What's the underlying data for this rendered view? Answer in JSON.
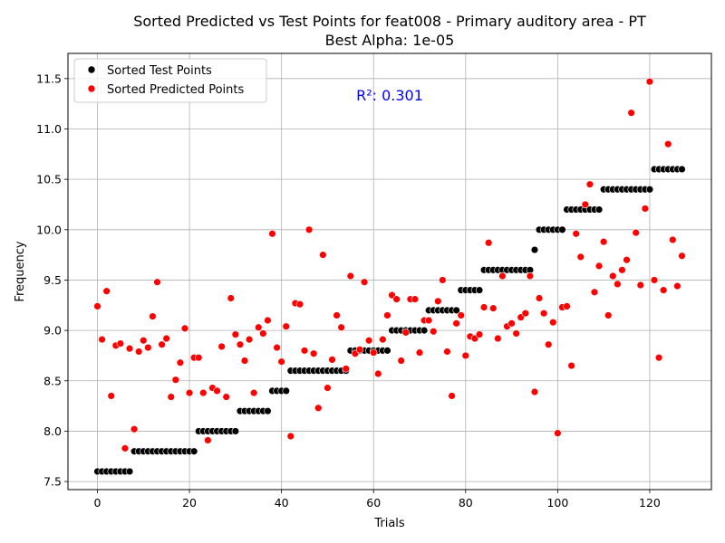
{
  "chart_data": {
    "type": "scatter",
    "title_line1": "Sorted Predicted vs Test Points for feat008 - Primary auditory area - PT",
    "title_line2": "Best Alpha: 1e-05",
    "xlabel": "Trials",
    "ylabel": "Frequency",
    "xlim": [
      -6.4,
      133.4
    ],
    "ylim": [
      7.42,
      11.75
    ],
    "xticks": [
      0,
      20,
      40,
      60,
      80,
      100,
      120
    ],
    "yticks": [
      7.5,
      8.0,
      8.5,
      9.0,
      9.5,
      10.0,
      10.5,
      11.0,
      11.5
    ],
    "xtick_labels": [
      "0",
      "20",
      "40",
      "60",
      "80",
      "100",
      "120"
    ],
    "ytick_labels": [
      "7.5",
      "8.0",
      "8.5",
      "9.0",
      "9.5",
      "10.0",
      "10.5",
      "11.0",
      "11.5"
    ],
    "grid": true,
    "legend_position": "top-left",
    "annotation": {
      "text": "R²: 0.301",
      "color": "#0000ff"
    },
    "series": [
      {
        "name": "Sorted Test Points",
        "color": "#000000",
        "x": [
          0,
          1,
          2,
          3,
          4,
          5,
          6,
          7,
          8,
          9,
          10,
          11,
          12,
          13,
          14,
          15,
          16,
          17,
          18,
          19,
          20,
          21,
          22,
          23,
          24,
          25,
          26,
          27,
          28,
          29,
          30,
          31,
          32,
          33,
          34,
          35,
          36,
          37,
          38,
          39,
          40,
          41,
          42,
          43,
          44,
          45,
          46,
          47,
          48,
          49,
          50,
          51,
          52,
          53,
          54,
          55,
          56,
          57,
          58,
          59,
          60,
          61,
          62,
          63,
          64,
          65,
          66,
          67,
          68,
          69,
          70,
          71,
          72,
          73,
          74,
          75,
          76,
          77,
          78,
          79,
          80,
          81,
          82,
          83,
          84,
          85,
          86,
          87,
          88,
          89,
          90,
          91,
          92,
          93,
          94,
          95,
          96,
          97,
          98,
          99,
          100,
          101,
          102,
          103,
          104,
          105,
          106,
          107,
          108,
          109,
          110,
          111,
          112,
          113,
          114,
          115,
          116,
          117,
          118,
          119,
          120,
          121,
          122,
          123,
          124,
          125,
          126,
          127
        ],
        "y": [
          7.6,
          7.6,
          7.6,
          7.6,
          7.6,
          7.6,
          7.6,
          7.6,
          7.8,
          7.8,
          7.8,
          7.8,
          7.8,
          7.8,
          7.8,
          7.8,
          7.8,
          7.8,
          7.8,
          7.8,
          7.8,
          7.8,
          8.0,
          8.0,
          8.0,
          8.0,
          8.0,
          8.0,
          8.0,
          8.0,
          8.0,
          8.2,
          8.2,
          8.2,
          8.2,
          8.2,
          8.2,
          8.2,
          8.4,
          8.4,
          8.4,
          8.4,
          8.6,
          8.6,
          8.6,
          8.6,
          8.6,
          8.6,
          8.6,
          8.6,
          8.6,
          8.6,
          8.6,
          8.6,
          8.6,
          8.8,
          8.8,
          8.8,
          8.8,
          8.8,
          8.8,
          8.8,
          8.8,
          8.8,
          9.0,
          9.0,
          9.0,
          9.0,
          9.0,
          9.0,
          9.0,
          9.0,
          9.2,
          9.2,
          9.2,
          9.2,
          9.2,
          9.2,
          9.2,
          9.4,
          9.4,
          9.4,
          9.4,
          9.4,
          9.6,
          9.6,
          9.6,
          9.6,
          9.6,
          9.6,
          9.6,
          9.6,
          9.6,
          9.6,
          9.6,
          9.8,
          10.0,
          10.0,
          10.0,
          10.0,
          10.0,
          10.0,
          10.2,
          10.2,
          10.2,
          10.2,
          10.2,
          10.2,
          10.2,
          10.2,
          10.4,
          10.4,
          10.4,
          10.4,
          10.4,
          10.4,
          10.4,
          10.4,
          10.4,
          10.4,
          10.4,
          10.6,
          10.6,
          10.6,
          10.6,
          10.6,
          10.6,
          10.6
        ]
      },
      {
        "name": "Sorted Predicted Points",
        "color": "#ff0000",
        "x": [
          0,
          1,
          2,
          3,
          4,
          5,
          6,
          7,
          8,
          9,
          10,
          11,
          12,
          13,
          14,
          15,
          16,
          17,
          18,
          19,
          20,
          21,
          22,
          23,
          24,
          25,
          26,
          27,
          28,
          29,
          30,
          31,
          32,
          33,
          34,
          35,
          36,
          37,
          38,
          39,
          40,
          41,
          42,
          43,
          44,
          45,
          46,
          47,
          48,
          49,
          50,
          51,
          52,
          53,
          54,
          55,
          56,
          57,
          58,
          59,
          60,
          61,
          62,
          63,
          64,
          65,
          66,
          67,
          68,
          69,
          70,
          71,
          72,
          73,
          74,
          75,
          76,
          77,
          78,
          79,
          80,
          81,
          82,
          83,
          84,
          85,
          86,
          87,
          88,
          89,
          90,
          91,
          92,
          93,
          94,
          95,
          96,
          97,
          98,
          99,
          100,
          101,
          102,
          103,
          104,
          105,
          106,
          107,
          108,
          109,
          110,
          111,
          112,
          113,
          114,
          115,
          116,
          117,
          118,
          119,
          120,
          121,
          122,
          123,
          124,
          125,
          126,
          127
        ],
        "y": [
          9.24,
          8.91,
          9.39,
          8.35,
          8.85,
          8.87,
          7.83,
          8.82,
          8.02,
          8.79,
          8.9,
          8.83,
          9.14,
          9.48,
          8.86,
          8.92,
          8.34,
          8.51,
          8.68,
          9.02,
          8.38,
          8.73,
          8.73,
          8.38,
          7.91,
          8.43,
          8.4,
          8.84,
          8.34,
          9.32,
          8.96,
          8.86,
          8.7,
          8.91,
          8.38,
          9.03,
          8.97,
          9.1,
          9.96,
          8.83,
          8.69,
          9.04,
          7.95,
          9.27,
          9.26,
          8.8,
          10.0,
          8.77,
          8.23,
          9.75,
          8.43,
          8.71,
          9.15,
          9.03,
          8.62,
          9.54,
          8.77,
          8.81,
          9.48,
          8.9,
          8.78,
          8.57,
          8.91,
          9.15,
          9.35,
          9.31,
          8.7,
          8.98,
          9.31,
          9.31,
          8.78,
          9.1,
          9.1,
          8.99,
          9.29,
          9.5,
          8.79,
          8.35,
          9.07,
          9.15,
          8.75,
          8.94,
          8.92,
          8.96,
          9.23,
          9.87,
          9.22,
          8.92,
          9.54,
          9.04,
          9.07,
          8.97,
          9.13,
          9.17,
          9.54,
          8.39,
          9.32,
          9.17,
          8.86,
          9.08,
          7.98,
          9.23,
          9.24,
          8.65,
          9.96,
          9.73,
          10.25,
          10.45,
          9.38,
          9.64,
          9.88,
          9.15,
          9.54,
          9.46,
          9.6,
          9.7,
          11.16,
          9.97,
          9.45,
          10.21,
          11.47,
          9.5,
          8.73,
          9.4,
          10.85,
          9.9,
          9.44,
          9.74
        ]
      }
    ]
  }
}
